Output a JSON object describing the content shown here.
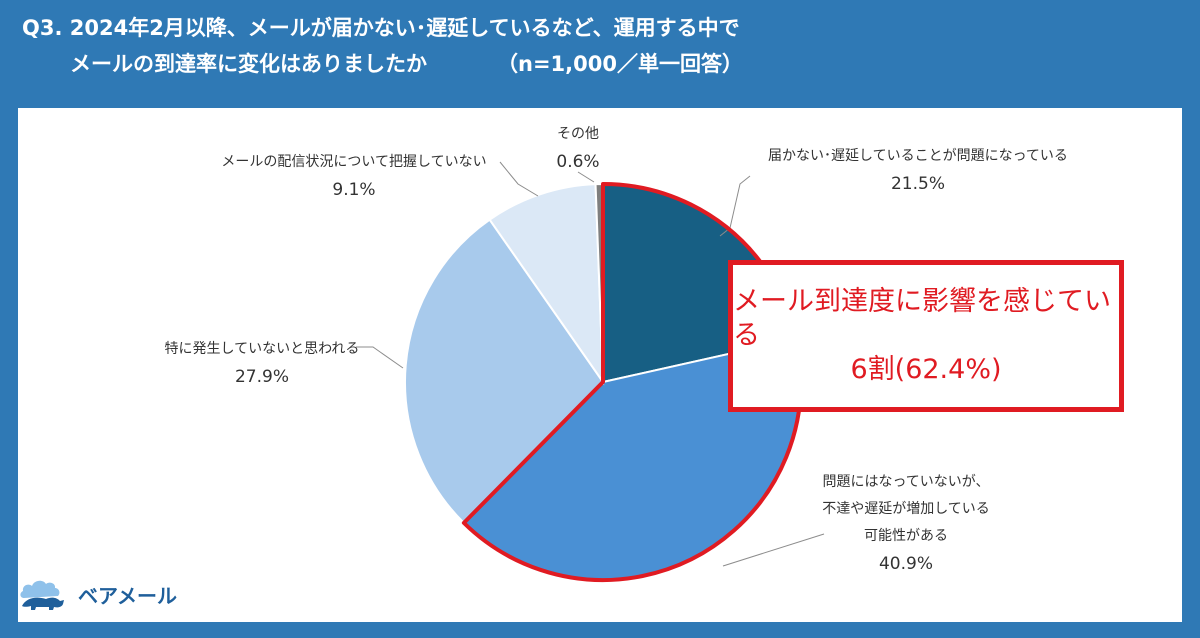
{
  "header": {
    "title_line1": "Q3. 2024年2月以降、メールが届かない･遅延しているなど、運用する中で",
    "title_line2": "メールの到達率に変化はありましたか",
    "title_note": "（n=1,000／単一回答）"
  },
  "callout": {
    "line1": "メール到達度に影響を感じている",
    "line2": "6割(62.4%)"
  },
  "brand": {
    "name": "ベアメール",
    "icon": "bear-cloud-logo-icon"
  },
  "colors": {
    "background": "#2f79b5",
    "highlight": "#e01b22",
    "slices": [
      "#175f84",
      "#4a90d4",
      "#a8caec",
      "#dbe8f6",
      "#7f7f7f"
    ]
  },
  "chart_data": {
    "type": "pie",
    "title": "",
    "slices": [
      {
        "lines": [
          "届かない･遅延していることが問題になっている"
        ],
        "value_label": "21.5%",
        "value": 21.5
      },
      {
        "lines": [
          "問題にはなっていないが、",
          "不達や遅延が増加している",
          "可能性がある"
        ],
        "value_label": "40.9%",
        "value": 40.9
      },
      {
        "lines": [
          "特に発生していないと思われる"
        ],
        "value_label": "27.9%",
        "value": 27.9
      },
      {
        "lines": [
          "メールの配信状況について把握していない"
        ],
        "value_label": "9.1%",
        "value": 9.1
      },
      {
        "lines": [
          "その他"
        ],
        "value_label": "0.6%",
        "value": 0.6
      }
    ],
    "start": "12 o'clock",
    "direction": "clockwise",
    "highlighted_slices": [
      0,
      1
    ]
  }
}
